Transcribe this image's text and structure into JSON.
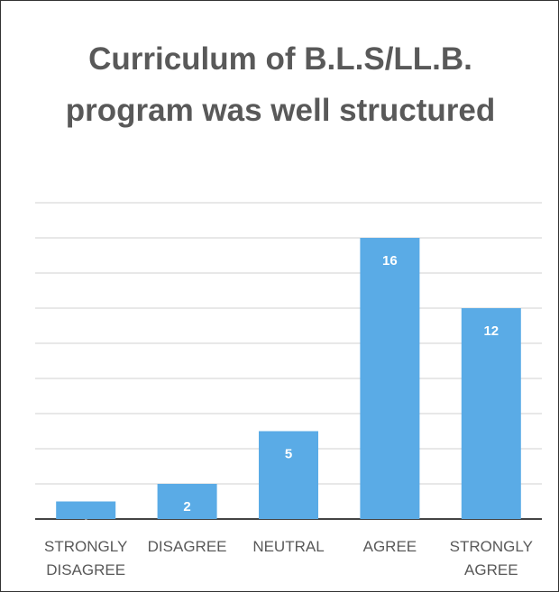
{
  "chart_data": {
    "type": "bar",
    "title": "Curriculum of B.L.S/LL.B. program was well structured",
    "categories": [
      "STRONGLY DISAGREE",
      "DISAGREE",
      "NEUTRAL",
      "AGREE",
      "STRONGLY AGREE"
    ],
    "values": [
      1,
      2,
      5,
      16,
      12
    ],
    "color": "#5aabe6",
    "ylim": [
      0,
      18
    ],
    "yticks": [
      0,
      2,
      4,
      6,
      8,
      10,
      12,
      14,
      16,
      18
    ],
    "grid": true
  }
}
